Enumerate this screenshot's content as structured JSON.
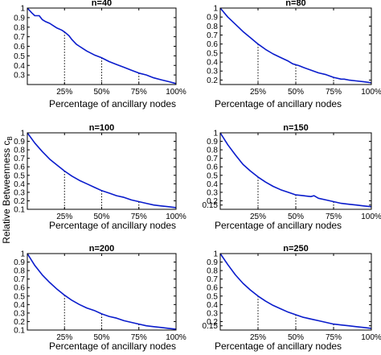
{
  "figure": {
    "xlabel": "Percentage of ancillary nodes",
    "ylabel": "Relative Betweenness c",
    "ylabel_sub": "B"
  },
  "chart_data": [
    {
      "type": "line",
      "title": "n=40",
      "xlabel": "Percentage of ancillary nodes",
      "ylabel": "Relative Betweenness c_B",
      "xlim": [
        0,
        100
      ],
      "ylim": [
        0.2,
        1.0
      ],
      "xticks": [
        25,
        50,
        75,
        100
      ],
      "xtick_labels": [
        "25%",
        "50%",
        "75%",
        "100%"
      ],
      "yticks": [
        0.3,
        0.4,
        0.5,
        0.6,
        0.7,
        0.8,
        0.9,
        1.0
      ],
      "ytick_labels": [
        "0.3",
        "0.4",
        "0.5",
        "0.6",
        "0.7",
        "0.8",
        "0.9",
        "1"
      ],
      "markers_at": [
        25,
        50,
        75
      ],
      "series": [
        {
          "color": "#0a1ccc",
          "x": [
            0,
            3,
            5,
            8,
            10,
            12,
            15,
            18,
            20,
            23,
            25,
            28,
            30,
            33,
            35,
            38,
            40,
            45,
            50,
            55,
            60,
            65,
            70,
            75,
            80,
            85,
            90,
            95,
            100
          ],
          "y": [
            1.0,
            0.95,
            0.92,
            0.92,
            0.88,
            0.86,
            0.84,
            0.81,
            0.79,
            0.77,
            0.75,
            0.71,
            0.67,
            0.62,
            0.6,
            0.57,
            0.55,
            0.51,
            0.48,
            0.44,
            0.41,
            0.38,
            0.35,
            0.32,
            0.3,
            0.27,
            0.25,
            0.23,
            0.21
          ]
        }
      ]
    },
    {
      "type": "line",
      "title": "n=80",
      "xlim": [
        0,
        100
      ],
      "ylim": [
        0.15,
        1.0
      ],
      "xticks": [
        25,
        50,
        75,
        100
      ],
      "xtick_labels": [
        "25%",
        "50%",
        "75%",
        "100%"
      ],
      "yticks": [
        0.2,
        0.3,
        0.4,
        0.5,
        0.6,
        0.7,
        0.8,
        0.9,
        1.0
      ],
      "ytick_labels": [
        "0.2",
        "0.3",
        "0.4",
        "0.5",
        "0.6",
        "0.7",
        "0.8",
        "0.9",
        "1"
      ],
      "markers_at": [
        25,
        50,
        75
      ],
      "series": [
        {
          "color": "#0a1ccc",
          "x": [
            0,
            5,
            10,
            15,
            20,
            25,
            30,
            35,
            40,
            45,
            48,
            50,
            52,
            55,
            60,
            65,
            70,
            75,
            80,
            82,
            85,
            90,
            95,
            100
          ],
          "y": [
            1.0,
            0.9,
            0.82,
            0.74,
            0.67,
            0.6,
            0.54,
            0.49,
            0.45,
            0.41,
            0.38,
            0.37,
            0.36,
            0.34,
            0.31,
            0.28,
            0.26,
            0.23,
            0.21,
            0.21,
            0.2,
            0.19,
            0.18,
            0.17
          ]
        }
      ]
    },
    {
      "type": "line",
      "title": "n=100",
      "xlim": [
        0,
        100
      ],
      "ylim": [
        0.1,
        1.0
      ],
      "xticks": [
        25,
        50,
        75,
        100
      ],
      "xtick_labels": [
        "25%",
        "50%",
        "75%",
        "100%"
      ],
      "yticks": [
        0.1,
        0.2,
        0.3,
        0.4,
        0.5,
        0.6,
        0.7,
        0.8,
        0.9,
        1.0
      ],
      "ytick_labels": [
        "0.1",
        "0.2",
        "0.3",
        "0.4",
        "0.5",
        "0.6",
        "0.7",
        "0.8",
        "0.9",
        "1"
      ],
      "markers_at": [
        25,
        50,
        75
      ],
      "series": [
        {
          "color": "#0a1ccc",
          "x": [
            0,
            5,
            10,
            15,
            20,
            25,
            30,
            35,
            40,
            45,
            50,
            55,
            60,
            65,
            70,
            75,
            80,
            85,
            90,
            95,
            100
          ],
          "y": [
            1.0,
            0.88,
            0.78,
            0.69,
            0.62,
            0.55,
            0.49,
            0.44,
            0.4,
            0.36,
            0.32,
            0.29,
            0.26,
            0.24,
            0.21,
            0.19,
            0.17,
            0.15,
            0.14,
            0.13,
            0.12
          ]
        }
      ]
    },
    {
      "type": "line",
      "title": "n=150",
      "xlim": [
        0,
        100
      ],
      "ylim": [
        0.1,
        1.0
      ],
      "xticks": [
        25,
        50,
        75,
        100
      ],
      "xtick_labels": [
        "25%",
        "50%",
        "75%",
        "100%"
      ],
      "yticks": [
        0.15,
        0.2,
        0.3,
        0.4,
        0.5,
        0.6,
        0.7,
        0.8,
        0.9,
        1.0
      ],
      "ytick_labels": [
        "0.15",
        "0.2",
        "0.3",
        "0.4",
        "0.5",
        "0.6",
        "0.7",
        "0.8",
        "0.9",
        "1"
      ],
      "markers_at": [
        25,
        50,
        75
      ],
      "series": [
        {
          "color": "#0a1ccc",
          "x": [
            0,
            5,
            10,
            15,
            20,
            25,
            30,
            35,
            40,
            45,
            50,
            55,
            60,
            62,
            65,
            70,
            75,
            80,
            85,
            90,
            95,
            100
          ],
          "y": [
            1.0,
            0.86,
            0.74,
            0.63,
            0.55,
            0.48,
            0.42,
            0.37,
            0.33,
            0.3,
            0.27,
            0.26,
            0.25,
            0.26,
            0.23,
            0.21,
            0.19,
            0.17,
            0.16,
            0.15,
            0.14,
            0.13
          ]
        }
      ]
    },
    {
      "type": "line",
      "title": "n=200",
      "xlim": [
        0,
        100
      ],
      "ylim": [
        0.1,
        1.0
      ],
      "xticks": [
        25,
        50,
        75,
        100
      ],
      "xtick_labels": [
        "25%",
        "50%",
        "75%",
        "100%"
      ],
      "yticks": [
        0.1,
        0.2,
        0.3,
        0.4,
        0.5,
        0.6,
        0.7,
        0.8,
        0.9,
        1.0
      ],
      "ytick_labels": [
        "0.1",
        "0.2",
        "0.3",
        "0.4",
        "0.5",
        "0.6",
        "0.7",
        "0.8",
        "0.9",
        "1"
      ],
      "markers_at": [
        25,
        50,
        75
      ],
      "series": [
        {
          "color": "#0a1ccc",
          "x": [
            0,
            5,
            10,
            15,
            20,
            25,
            30,
            35,
            40,
            45,
            50,
            55,
            60,
            65,
            70,
            75,
            80,
            85,
            90,
            95,
            100
          ],
          "y": [
            1.0,
            0.86,
            0.75,
            0.66,
            0.58,
            0.51,
            0.45,
            0.4,
            0.36,
            0.33,
            0.29,
            0.26,
            0.24,
            0.21,
            0.19,
            0.17,
            0.15,
            0.14,
            0.13,
            0.12,
            0.11
          ]
        }
      ]
    },
    {
      "type": "line",
      "title": "n=250",
      "xlim": [
        0,
        100
      ],
      "ylim": [
        0.1,
        1.0
      ],
      "xticks": [
        25,
        50,
        75,
        100
      ],
      "xtick_labels": [
        "25%",
        "50%",
        "75%",
        "100%"
      ],
      "yticks": [
        0.15,
        0.2,
        0.3,
        0.4,
        0.5,
        0.6,
        0.7,
        0.8,
        0.9,
        1.0
      ],
      "ytick_labels": [
        "0.15",
        "0.2",
        "0.3",
        "0.4",
        "0.5",
        "0.6",
        "0.7",
        "0.8",
        "0.9",
        "1"
      ],
      "markers_at": [
        25,
        50,
        75
      ],
      "series": [
        {
          "color": "#0a1ccc",
          "x": [
            0,
            5,
            10,
            15,
            20,
            25,
            30,
            35,
            40,
            45,
            50,
            55,
            60,
            65,
            70,
            75,
            80,
            85,
            90,
            95,
            100
          ],
          "y": [
            1.0,
            0.87,
            0.75,
            0.65,
            0.57,
            0.5,
            0.44,
            0.39,
            0.35,
            0.31,
            0.28,
            0.25,
            0.23,
            0.21,
            0.19,
            0.17,
            0.16,
            0.15,
            0.14,
            0.13,
            0.12
          ]
        }
      ]
    }
  ]
}
